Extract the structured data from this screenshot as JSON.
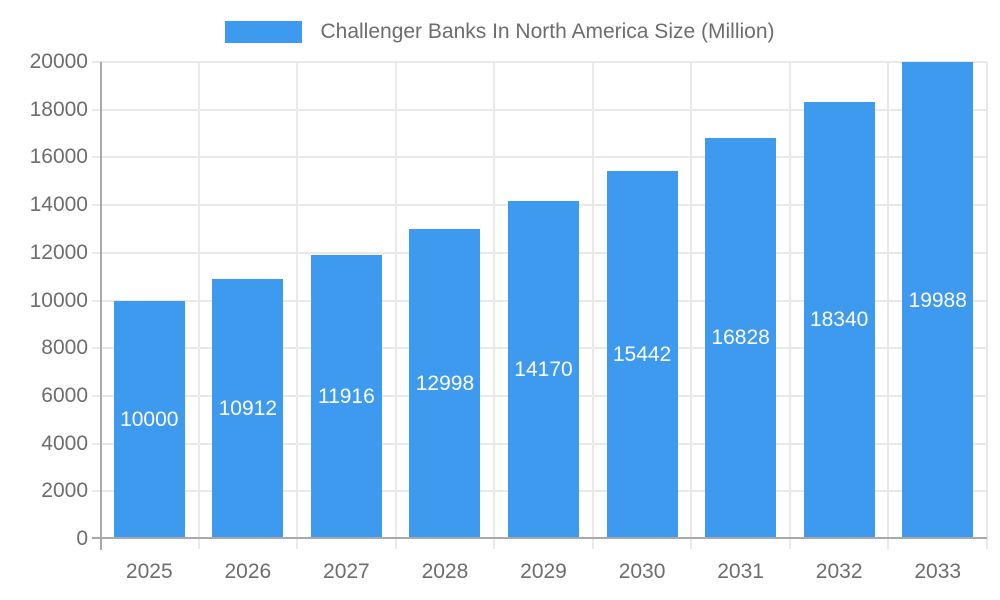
{
  "chart_data": {
    "type": "bar",
    "title": "Challenger Banks In North America Size (Million)",
    "series_name": "Challenger Banks In North America Size (Million)",
    "categories": [
      "2025",
      "2026",
      "2027",
      "2028",
      "2029",
      "2030",
      "2031",
      "2032",
      "2033"
    ],
    "values": [
      10000,
      10912,
      11916,
      12998,
      14170,
      15442,
      16828,
      18340,
      19988
    ],
    "value_labels_shown": [
      10000,
      10912,
      11916,
      12998,
      14170,
      15442,
      16828,
      18340,
      19988
    ],
    "xlabel": "",
    "ylabel": "",
    "ylim": [
      0,
      20000
    ],
    "yticks": [
      0,
      2000,
      4000,
      6000,
      8000,
      10000,
      12000,
      14000,
      16000,
      18000,
      20000
    ],
    "grid": true,
    "legend_position": "top-center",
    "value_label_position": "inside-center"
  },
  "style": {
    "bar_color": "#3d9aef",
    "bar_label_color": "#ffffff",
    "axis_text_color": "#6d6d6d",
    "legend_text_color": "#6d6d6d",
    "grid_color": "#e9e9e9",
    "axis_line_color": "#a9a9a9",
    "background_color": "#ffffff"
  }
}
